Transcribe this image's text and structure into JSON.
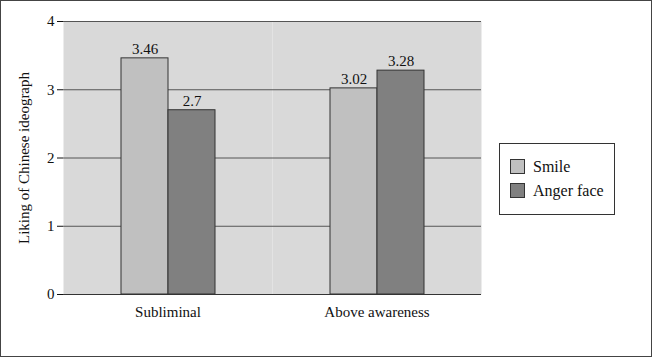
{
  "chart_data": {
    "type": "bar",
    "categories": [
      "Subliminal",
      "Above awareness"
    ],
    "series": [
      {
        "name": "Smile",
        "color": "#c0c0c0",
        "values": [
          3.46,
          3.02
        ]
      },
      {
        "name": "Anger face",
        "color": "#808080",
        "values": [
          2.7,
          3.28
        ]
      }
    ],
    "y_label": "Liking of Chinese ideograph",
    "ylim": [
      0,
      4
    ],
    "yticks": [
      0,
      1,
      2,
      3,
      4
    ],
    "grid": true,
    "legend": "right",
    "data_labels": true
  }
}
